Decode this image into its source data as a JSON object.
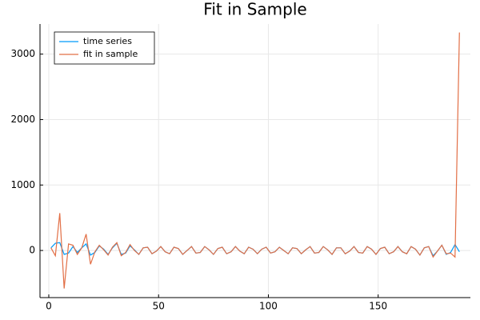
{
  "chart_data": {
    "type": "line",
    "title": "Fit in Sample",
    "x": [
      1,
      3,
      5,
      7,
      9,
      11,
      13,
      15,
      17,
      19,
      21,
      23,
      25,
      27,
      29,
      31,
      33,
      35,
      37,
      39,
      41,
      43,
      45,
      47,
      49,
      51,
      53,
      55,
      57,
      59,
      61,
      63,
      65,
      67,
      69,
      71,
      73,
      75,
      77,
      79,
      81,
      83,
      85,
      87,
      89,
      91,
      93,
      95,
      97,
      99,
      101,
      103,
      105,
      107,
      109,
      111,
      113,
      115,
      117,
      119,
      121,
      123,
      125,
      127,
      129,
      131,
      133,
      135,
      137,
      139,
      141,
      143,
      145,
      147,
      149,
      151,
      153,
      155,
      157,
      159,
      161,
      163,
      165,
      167,
      169,
      171,
      173,
      175,
      177,
      179,
      181,
      183,
      185,
      187
    ],
    "series": [
      {
        "name": "time series",
        "color": "#009af9",
        "values": [
          40,
          110,
          120,
          -60,
          -40,
          60,
          -30,
          40,
          100,
          -70,
          -30,
          70,
          20,
          -60,
          40,
          110,
          -60,
          -40,
          70,
          10,
          -60,
          40,
          50,
          -50,
          -10,
          60,
          -20,
          -50,
          50,
          30,
          -60,
          0,
          60,
          -40,
          -30,
          60,
          10,
          -60,
          30,
          50,
          -50,
          -20,
          60,
          -10,
          -50,
          50,
          20,
          -50,
          20,
          50,
          -40,
          -20,
          50,
          0,
          -50,
          40,
          30,
          -50,
          10,
          60,
          -40,
          -30,
          60,
          10,
          -60,
          40,
          40,
          -50,
          -10,
          60,
          -30,
          -40,
          60,
          20,
          -60,
          30,
          50,
          -50,
          -20,
          60,
          -20,
          -50,
          60,
          20,
          -70,
          40,
          60,
          -80,
          -10,
          80,
          -60,
          -30,
          90,
          -20
        ]
      },
      {
        "name": "fit in sample",
        "color": "#e26f46",
        "values": [
          40,
          -80,
          570,
          -580,
          100,
          80,
          -60,
          40,
          250,
          -210,
          -20,
          80,
          10,
          -70,
          50,
          120,
          -80,
          -30,
          90,
          0,
          -60,
          40,
          50,
          -50,
          -10,
          60,
          -20,
          -50,
          50,
          30,
          -60,
          0,
          60,
          -40,
          -30,
          60,
          10,
          -60,
          30,
          50,
          -50,
          -20,
          60,
          -10,
          -50,
          50,
          20,
          -50,
          20,
          50,
          -40,
          -20,
          50,
          0,
          -50,
          40,
          30,
          -50,
          10,
          60,
          -40,
          -30,
          60,
          10,
          -60,
          40,
          40,
          -50,
          -10,
          60,
          -30,
          -40,
          60,
          20,
          -60,
          30,
          50,
          -50,
          -20,
          60,
          -20,
          -50,
          60,
          20,
          -70,
          40,
          60,
          -100,
          -10,
          80,
          -50,
          -40,
          -100,
          3330
        ]
      }
    ],
    "xlim": [
      -4,
      192
    ],
    "ylim": [
      -720,
      3460
    ],
    "xticks": [
      0,
      50,
      100,
      150
    ],
    "yticks": [
      0,
      1000,
      2000,
      3000
    ],
    "grid": true,
    "legend": "top-left"
  }
}
